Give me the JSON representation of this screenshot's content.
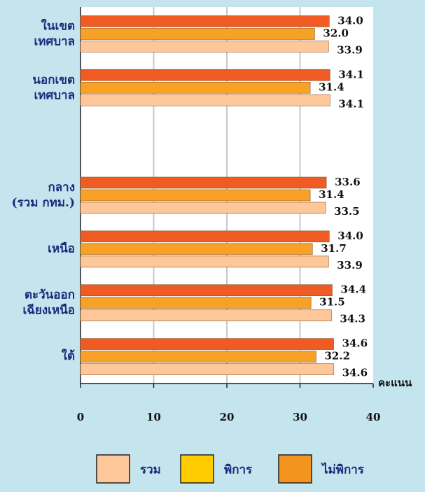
{
  "chart_data": {
    "type": "hbar",
    "categories": [
      "ในเขต\nเทศบาล",
      "นอกเขต\nเทศบาล",
      null,
      "กลาง\n(รวม กทม.)",
      "เหนือ",
      "ตะวันออก\nเฉียงเหนือ",
      "ใต้"
    ],
    "series": [
      {
        "name": "ไม่พิการ",
        "color": "#ef5b22",
        "legend_color": "#f39420",
        "values": [
          34.0,
          34.1,
          null,
          33.6,
          34.0,
          34.4,
          34.6
        ],
        "value_labels": [
          "34.0",
          "34.1",
          null,
          "33.6",
          "34.0",
          "34.4",
          "34.6"
        ]
      },
      {
        "name": "พิการ",
        "color": "#f7a126",
        "legend_color": "#ffcc00",
        "values": [
          32.0,
          31.4,
          null,
          31.4,
          31.7,
          31.5,
          32.2
        ],
        "value_labels": [
          "32.0",
          "31.4",
          null,
          "31.4",
          "31.7",
          "31.5",
          "32.2"
        ]
      },
      {
        "name": "รวม",
        "color": "#fdc79a",
        "legend_color": "#fdc79a",
        "values": [
          33.9,
          34.1,
          null,
          33.5,
          33.9,
          34.3,
          34.6
        ],
        "value_labels": [
          "33.9",
          "34.1",
          null,
          "33.5",
          "33.9",
          "34.3",
          "34.6"
        ]
      }
    ],
    "legend_order": [
      2,
      1,
      0
    ],
    "x_label": "คะแนน",
    "xlim": [
      0,
      40
    ],
    "xticks": [
      0,
      10,
      20,
      30,
      40
    ],
    "grid": true
  }
}
